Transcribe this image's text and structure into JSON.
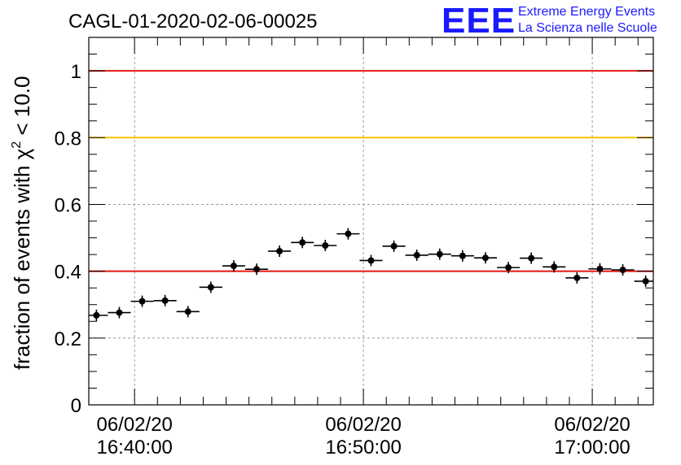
{
  "logo": {
    "mark": "EEE",
    "line1": "Extreme Energy Events",
    "line2": "La Scienza nelle Scuole",
    "color": "#1a1aff"
  },
  "chart_data": {
    "type": "scatter",
    "title": "CAGL-01-2020-02-06-00025",
    "ylabel_main": "fraction of events with ",
    "ylabel_chi": "χ",
    "ylabel_sup": "2",
    "ylabel_tail": " < 10.0",
    "xlabel": "",
    "ylim": [
      0,
      1.1
    ],
    "yticks": [
      {
        "v": 0,
        "label": "0"
      },
      {
        "v": 0.2,
        "label": "0.2"
      },
      {
        "v": 0.4,
        "label": "0.4"
      },
      {
        "v": 0.6,
        "label": "0.6"
      },
      {
        "v": 0.8,
        "label": "0.8"
      },
      {
        "v": 1,
        "label": "1"
      }
    ],
    "xlim": [
      "16:38:00",
      "17:02:40"
    ],
    "xticks": [
      {
        "t": "16:40:00",
        "date": "06/02/20",
        "time": "16:40:00"
      },
      {
        "t": "16:50:00",
        "date": "06/02/20",
        "time": "16:50:00"
      },
      {
        "t": "17:00:00",
        "date": "06/02/20",
        "time": "17:00:00"
      }
    ],
    "grid": true,
    "reference_lines": [
      {
        "y": 1.0,
        "color": "#e8150f"
      },
      {
        "y": 0.8,
        "color": "#ffc400"
      },
      {
        "y": 0.4,
        "color": "#e8150f"
      }
    ],
    "bin_width_min": 1,
    "series": [
      {
        "points": [
          {
            "x": "16:38:20",
            "y": 0.268
          },
          {
            "x": "16:39:20",
            "y": 0.276
          },
          {
            "x": "16:40:20",
            "y": 0.31
          },
          {
            "x": "16:41:20",
            "y": 0.312
          },
          {
            "x": "16:42:20",
            "y": 0.279
          },
          {
            "x": "16:43:20",
            "y": 0.352
          },
          {
            "x": "16:44:20",
            "y": 0.416
          },
          {
            "x": "16:45:20",
            "y": 0.406
          },
          {
            "x": "16:46:20",
            "y": 0.46
          },
          {
            "x": "16:47:20",
            "y": 0.486
          },
          {
            "x": "16:48:20",
            "y": 0.477
          },
          {
            "x": "16:49:20",
            "y": 0.512
          },
          {
            "x": "16:50:20",
            "y": 0.432
          },
          {
            "x": "16:51:20",
            "y": 0.475
          },
          {
            "x": "16:52:20",
            "y": 0.448
          },
          {
            "x": "16:53:20",
            "y": 0.451
          },
          {
            "x": "16:54:20",
            "y": 0.446
          },
          {
            "x": "16:55:20",
            "y": 0.44
          },
          {
            "x": "16:56:20",
            "y": 0.411
          },
          {
            "x": "16:57:20",
            "y": 0.439
          },
          {
            "x": "16:58:20",
            "y": 0.413
          },
          {
            "x": "16:59:20",
            "y": 0.38
          },
          {
            "x": "17:00:20",
            "y": 0.407
          },
          {
            "x": "17:01:20",
            "y": 0.404
          },
          {
            "x": "17:02:20",
            "y": 0.37
          }
        ]
      }
    ]
  }
}
